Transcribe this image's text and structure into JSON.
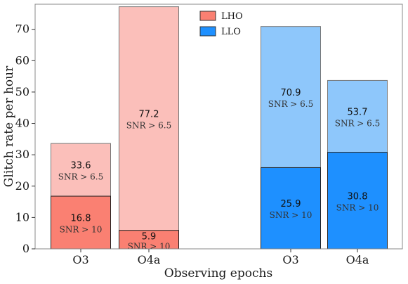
{
  "chart_data": {
    "type": "bar",
    "xlabel": "Observing epochs",
    "ylabel": "Glitch rate per hour",
    "ylim": [
      0,
      78
    ],
    "yticks": [
      0,
      10,
      20,
      30,
      40,
      50,
      60,
      70
    ],
    "grid": false,
    "legend_position": "top-center",
    "series": [
      {
        "name": "LHO",
        "color": "#fa8072",
        "light_color": "#fbbfba",
        "bars": [
          {
            "category": "O3",
            "total": 33.6,
            "total_label": "33.6",
            "total_threshold": "SNR > 6.5",
            "high": 16.8,
            "high_label": "16.8",
            "high_threshold": "SNR > 10"
          },
          {
            "category": "O4a",
            "total": 77.2,
            "total_label": "77.2",
            "total_threshold": "SNR > 6.5",
            "high": 5.9,
            "high_label": "5.9",
            "high_threshold": "SNR > 10"
          }
        ]
      },
      {
        "name": "LLO",
        "color": "#1e90ff",
        "light_color": "#8ec7fb",
        "bars": [
          {
            "category": "O3",
            "total": 70.9,
            "total_label": "70.9",
            "total_threshold": "SNR > 6.5",
            "high": 25.9,
            "high_label": "25.9",
            "high_threshold": "SNR > 10"
          },
          {
            "category": "O4a",
            "total": 53.7,
            "total_label": "53.7",
            "total_threshold": "SNR > 6.5",
            "high": 30.8,
            "high_label": "30.8",
            "high_threshold": "SNR > 10"
          }
        ]
      }
    ]
  }
}
